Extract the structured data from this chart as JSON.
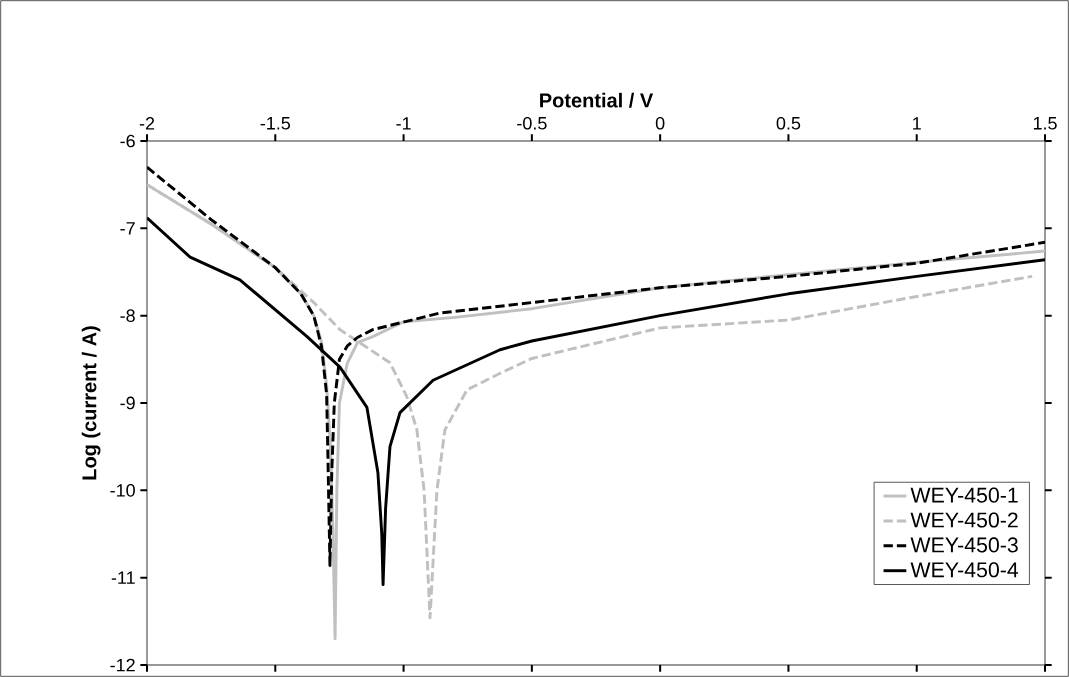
{
  "chart_data": {
    "type": "line",
    "xlabel": "Potential / V",
    "ylabel": "Log (current / A)",
    "xlim": [
      -2,
      1.5
    ],
    "ylim": [
      -12,
      -6
    ],
    "xticks": [
      -2,
      -1.5,
      -1,
      -0.5,
      0,
      0.5,
      1,
      1.5
    ],
    "yticks": [
      -12,
      -11,
      -10,
      -9,
      -8,
      -7,
      -6
    ],
    "legend": "bottom right",
    "grid": false,
    "series": [
      {
        "name": "WEY-450-1",
        "color": "#c0c0c0",
        "line_style": "solid",
        "x": [
          -2,
          -1.75,
          -1.5,
          -1.4,
          -1.35,
          -1.32,
          -1.3,
          -1.285,
          -1.275,
          -1.267,
          -1.26,
          -1.25,
          -1.22,
          -1.18,
          -1.12,
          -1.0,
          -0.8,
          -0.5,
          0,
          0.5,
          1.0,
          1.5
        ],
        "values": [
          -6.5,
          -6.95,
          -7.45,
          -7.75,
          -8.0,
          -8.3,
          -8.8,
          -9.5,
          -10.5,
          -11.7,
          -10.0,
          -9.0,
          -8.55,
          -8.31,
          -8.24,
          -8.07,
          -8.02,
          -7.92,
          -7.68,
          -7.53,
          -7.39,
          -7.26
        ]
      },
      {
        "name": "WEY-450-2",
        "color": "#c0c0c0",
        "line_style": "dashed",
        "x": [
          -2,
          -1.75,
          -1.5,
          -1.35,
          -1.248,
          -1.15,
          -1.053,
          -0.987,
          -0.948,
          -0.92,
          -0.897,
          -0.87,
          -0.839,
          -0.753,
          -0.624,
          -0.5,
          0,
          0.5,
          1.0,
          1.45
        ],
        "values": [
          -6.5,
          -6.95,
          -7.45,
          -7.85,
          -8.16,
          -8.35,
          -8.54,
          -8.93,
          -9.31,
          -10.0,
          -11.46,
          -10.0,
          -9.31,
          -8.85,
          -8.66,
          -8.49,
          -8.14,
          -8.05,
          -7.78,
          -7.55
        ]
      },
      {
        "name": "WEY-450-3",
        "color": "#000000",
        "line_style": "dashed",
        "x": [
          -2,
          -1.75,
          -1.5,
          -1.4,
          -1.35,
          -1.32,
          -1.3,
          -1.295,
          -1.287,
          -1.28,
          -1.27,
          -1.25,
          -1.22,
          -1.18,
          -1.12,
          -0.858,
          -0.5,
          0,
          0.5,
          1.0,
          1.5
        ],
        "values": [
          -6.3,
          -6.9,
          -7.45,
          -7.75,
          -8.0,
          -8.35,
          -8.9,
          -9.6,
          -10.86,
          -9.8,
          -9.0,
          -8.5,
          -8.35,
          -8.25,
          -8.16,
          -7.97,
          -7.85,
          -7.68,
          -7.55,
          -7.4,
          -7.16
        ]
      },
      {
        "name": "WEY-450-4",
        "color": "#000000",
        "line_style": "solid",
        "x": [
          -2,
          -1.832,
          -1.638,
          -1.376,
          -1.248,
          -1.143,
          -1.1,
          -1.085,
          -1.08,
          -1.07,
          -1.053,
          -1.014,
          -0.885,
          -0.624,
          -0.5,
          0,
          0.5,
          1.0,
          1.5
        ],
        "values": [
          -6.88,
          -7.33,
          -7.59,
          -8.24,
          -8.59,
          -9.05,
          -9.8,
          -10.5,
          -11.08,
          -10.2,
          -9.5,
          -9.11,
          -8.74,
          -8.39,
          -8.29,
          -8.0,
          -7.75,
          -7.55,
          -7.36
        ]
      }
    ]
  }
}
